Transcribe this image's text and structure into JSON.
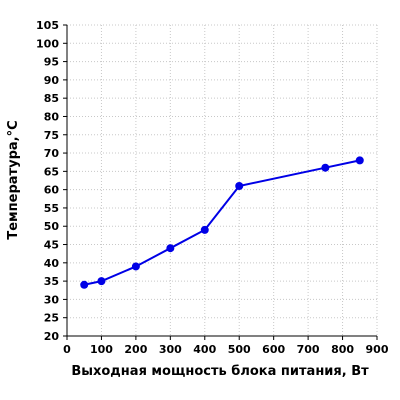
{
  "chart_data": {
    "type": "line",
    "xlabel": "Выходная мощность блока питания, Вт",
    "ylabel": "Температура,°C",
    "xlim": [
      0,
      900
    ],
    "ylim": [
      20,
      105
    ],
    "xticks": [
      0,
      100,
      200,
      300,
      400,
      500,
      600,
      700,
      800,
      900
    ],
    "yticks": [
      20,
      25,
      30,
      35,
      40,
      45,
      50,
      55,
      60,
      65,
      70,
      75,
      80,
      85,
      90,
      95,
      100,
      105
    ],
    "grid": true,
    "legend": "none",
    "series": [
      {
        "color": "#0000e6",
        "x": [
          50,
          100,
          200,
          300,
          400,
          500,
          750,
          850
        ],
        "y": [
          34,
          35,
          39,
          44,
          49,
          61,
          66,
          68
        ]
      }
    ]
  }
}
